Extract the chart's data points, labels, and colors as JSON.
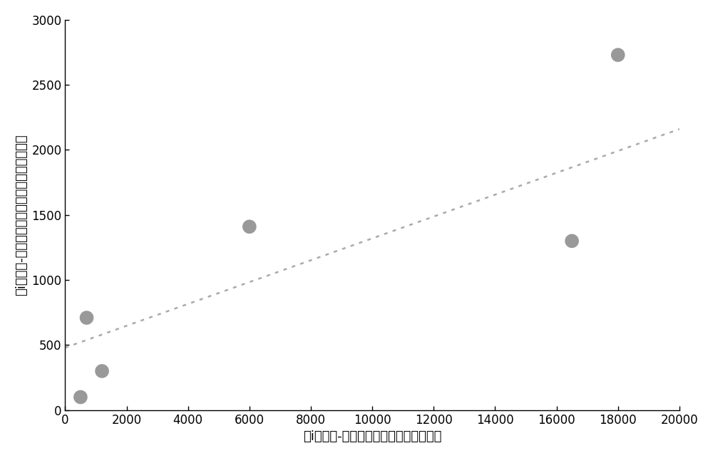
{
  "scatter_x": [
    500,
    700,
    1200,
    6000,
    16500,
    18000
  ],
  "scatter_y": [
    100,
    710,
    300,
    1410,
    1300,
    2730
  ],
  "dot_line_x": [
    0,
    20000
  ],
  "dot_line_y": [
    480,
    2160
  ],
  "dot_color": "#999999",
  "line_color": "#aaaaaa",
  "marker_size": 200,
  "xlabel": "第i个断层-岩性油气藏油气储量（万吨）",
  "ylabel": "第i个断层-岩性油气藏油气储量计算值（万吨）",
  "xlim": [
    0,
    20000
  ],
  "ylim": [
    0,
    3000
  ],
  "xticks": [
    0,
    2000,
    4000,
    6000,
    8000,
    10000,
    12000,
    14000,
    16000,
    18000,
    20000
  ],
  "yticks": [
    0,
    500,
    1000,
    1500,
    2000,
    2500,
    3000
  ],
  "background_color": "#ffffff",
  "label_fontsize": 13,
  "tick_fontsize": 12
}
